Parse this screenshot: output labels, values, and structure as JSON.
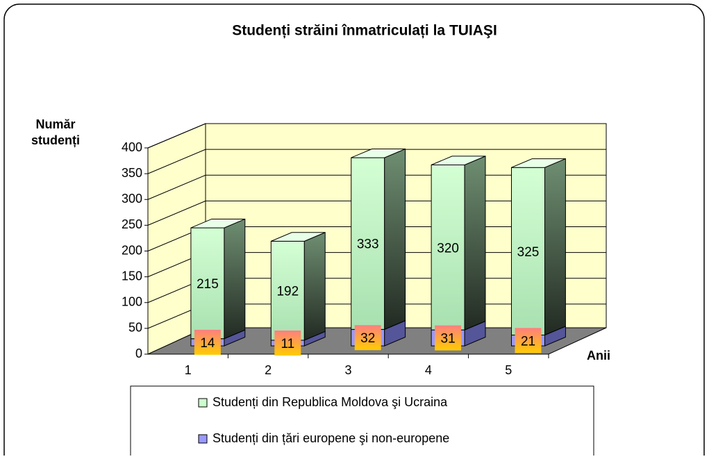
{
  "chart_data": {
    "type": "bar",
    "stacked": true,
    "title": "Studenți străini înmatriculați la TUIAŞI",
    "y_label": "Număr studenți",
    "x_label": "Anii",
    "categories": [
      "1",
      "2",
      "3",
      "4",
      "5"
    ],
    "series": [
      {
        "name": "Studenți din Republica Moldova şi Ucraina",
        "color": "#ccffcc",
        "values": [
          215,
          192,
          333,
          320,
          325
        ]
      },
      {
        "name": "Studenți din țări europene şi non-europene",
        "color": "#9999ff",
        "values": [
          14,
          11,
          32,
          31,
          21
        ]
      }
    ],
    "ylim": [
      0,
      400
    ],
    "yticks": [
      0,
      50,
      100,
      150,
      200,
      250,
      300,
      350,
      400
    ],
    "grid": true,
    "legend": "bottom"
  }
}
